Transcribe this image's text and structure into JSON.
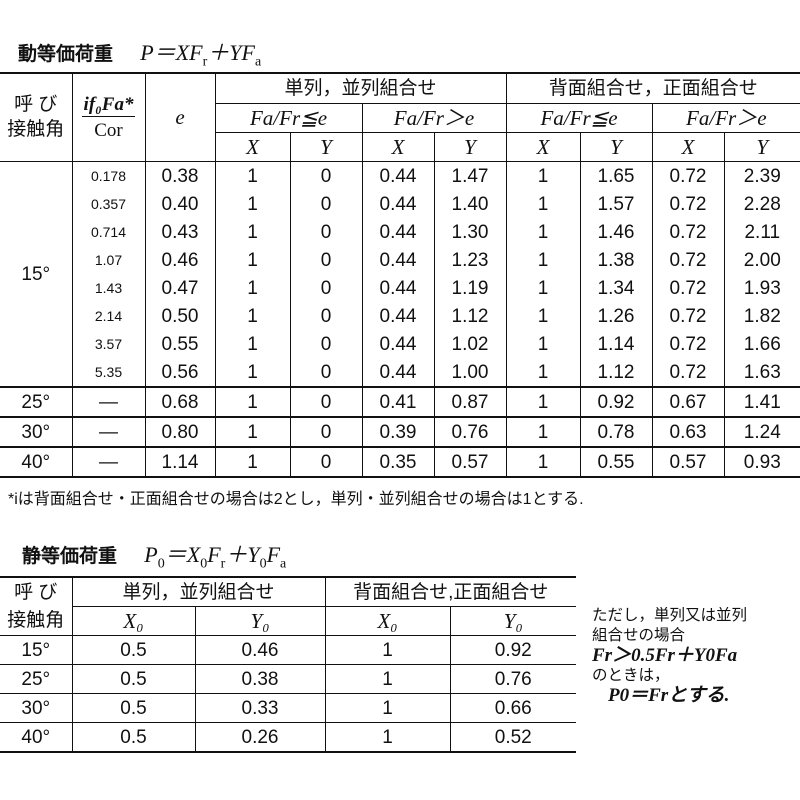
{
  "dynamic": {
    "title": "動等価荷重",
    "formula": {
      "a": "P＝XF",
      "b": "r",
      "c": "＋YF",
      "d": "a"
    },
    "header": {
      "contact_angle": "呼 び\n接触角",
      "ratio_num": "if₀Fa*",
      "ratio_den": "Cor",
      "e": "e",
      "single_group": "単列，並列組合せ",
      "back_group": "背面組合せ，正面組合せ",
      "cond_le": "Fa/Fr≦e",
      "cond_gt": "Fa/Fr＞e",
      "x": "X",
      "y": "Y"
    },
    "rows": [
      {
        "angle": "15°",
        "ratio": "0.178",
        "e": "0.38",
        "x1": "1",
        "y1": "0",
        "x2": "0.44",
        "y2": "1.47",
        "x3": "1",
        "y3": "1.65",
        "x4": "0.72",
        "y4": "2.39"
      },
      {
        "angle": "",
        "ratio": "0.357",
        "e": "0.40",
        "x1": "1",
        "y1": "0",
        "x2": "0.44",
        "y2": "1.40",
        "x3": "1",
        "y3": "1.57",
        "x4": "0.72",
        "y4": "2.28"
      },
      {
        "angle": "",
        "ratio": "0.714",
        "e": "0.43",
        "x1": "1",
        "y1": "0",
        "x2": "0.44",
        "y2": "1.30",
        "x3": "1",
        "y3": "1.46",
        "x4": "0.72",
        "y4": "2.11"
      },
      {
        "angle": "",
        "ratio": "1.07",
        "e": "0.46",
        "x1": "1",
        "y1": "0",
        "x2": "0.44",
        "y2": "1.23",
        "x3": "1",
        "y3": "1.38",
        "x4": "0.72",
        "y4": "2.00"
      },
      {
        "angle": "",
        "ratio": "1.43",
        "e": "0.47",
        "x1": "1",
        "y1": "0",
        "x2": "0.44",
        "y2": "1.19",
        "x3": "1",
        "y3": "1.34",
        "x4": "0.72",
        "y4": "1.93"
      },
      {
        "angle": "",
        "ratio": "2.14",
        "e": "0.50",
        "x1": "1",
        "y1": "0",
        "x2": "0.44",
        "y2": "1.12",
        "x3": "1",
        "y3": "1.26",
        "x4": "0.72",
        "y4": "1.82"
      },
      {
        "angle": "",
        "ratio": "3.57",
        "e": "0.55",
        "x1": "1",
        "y1": "0",
        "x2": "0.44",
        "y2": "1.02",
        "x3": "1",
        "y3": "1.14",
        "x4": "0.72",
        "y4": "1.66"
      },
      {
        "angle": "",
        "ratio": "5.35",
        "e": "0.56",
        "x1": "1",
        "y1": "0",
        "x2": "0.44",
        "y2": "1.00",
        "x3": "1",
        "y3": "1.12",
        "x4": "0.72",
        "y4": "1.63"
      },
      {
        "angle": "25°",
        "ratio": "—",
        "e": "0.68",
        "x1": "1",
        "y1": "0",
        "x2": "0.41",
        "y2": "0.87",
        "x3": "1",
        "y3": "0.92",
        "x4": "0.67",
        "y4": "1.41"
      },
      {
        "angle": "30°",
        "ratio": "—",
        "e": "0.80",
        "x1": "1",
        "y1": "0",
        "x2": "0.39",
        "y2": "0.76",
        "x3": "1",
        "y3": "0.78",
        "x4": "0.63",
        "y4": "1.24"
      },
      {
        "angle": "40°",
        "ratio": "—",
        "e": "1.14",
        "x1": "1",
        "y1": "0",
        "x2": "0.35",
        "y2": "0.57",
        "x3": "1",
        "y3": "0.55",
        "x4": "0.57",
        "y4": "0.93"
      }
    ],
    "footnote": "*iは背面組合せ・正面組合せの場合は2とし，単列・並列組合せの場合は1とする."
  },
  "static": {
    "title": "静等価荷重",
    "formula": {
      "a": "P",
      "b": "0",
      "c": "＝X",
      "d": "0",
      "e": "F",
      "f": "r",
      "g": "＋Y",
      "h": "0",
      "i": "F",
      "j": "a"
    },
    "header": {
      "contact_angle": "呼 び\n接触角",
      "single_group": "単列，並列組合せ",
      "back_group": "背面組合せ,正面組合せ",
      "x0": "X₀",
      "y0": "Y₀"
    },
    "rows": [
      {
        "angle": "15°",
        "x1": "0.5",
        "y1": "0.46",
        "x2": "1",
        "y2": "0.92"
      },
      {
        "angle": "25°",
        "x1": "0.5",
        "y1": "0.38",
        "x2": "1",
        "y2": "0.76"
      },
      {
        "angle": "30°",
        "x1": "0.5",
        "y1": "0.33",
        "x2": "1",
        "y2": "0.66"
      },
      {
        "angle": "40°",
        "x1": "0.5",
        "y1": "0.26",
        "x2": "1",
        "y2": "0.52"
      }
    ],
    "side_note": {
      "line1": "ただし，単列又は並列",
      "line2": "組合せの場合",
      "line3": "Fr＞0.5Fr＋Y0Fa",
      "line4": "のときは，",
      "line5": "P0＝Frとする."
    }
  }
}
